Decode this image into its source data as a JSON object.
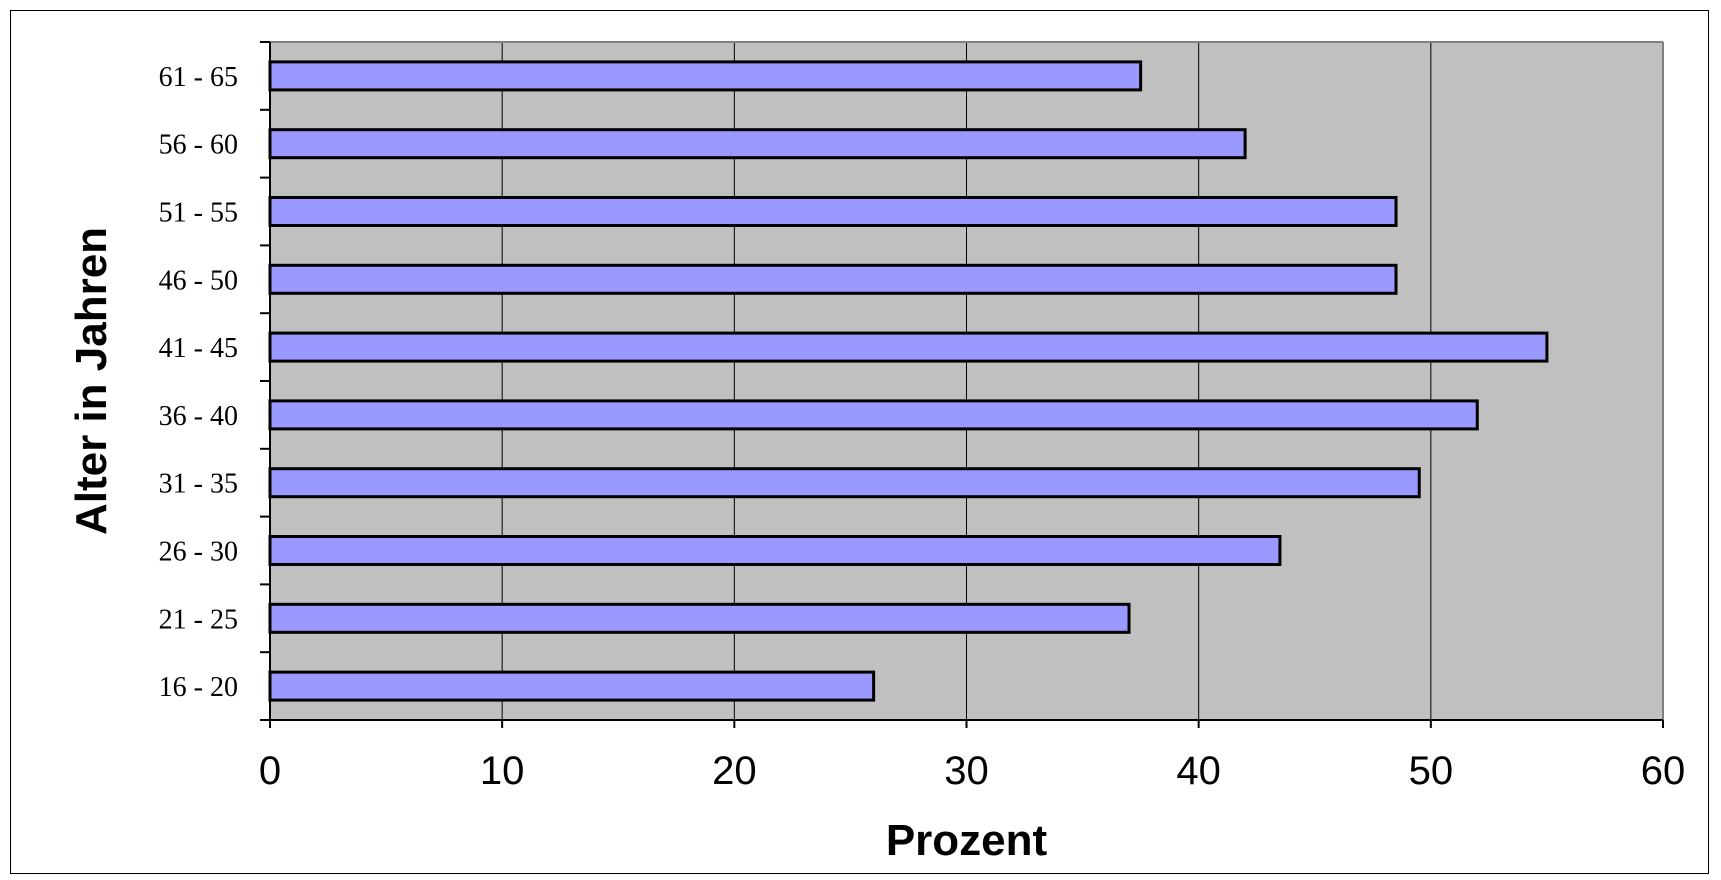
{
  "chart_data": {
    "type": "bar",
    "orientation": "horizontal",
    "categories": [
      "16 - 20",
      "21 - 25",
      "26 - 30",
      "31 - 35",
      "36 - 40",
      "41 - 45",
      "46 - 50",
      "51 - 55",
      "56 - 60",
      "61 - 65"
    ],
    "values": [
      26,
      37,
      43.5,
      49.5,
      52,
      55,
      48.5,
      48.5,
      42,
      37.5
    ],
    "xlabel": "Prozent",
    "ylabel": "Alter in Jahren",
    "xlim": [
      0,
      60
    ],
    "x_ticks": [
      "0",
      "10",
      "20",
      "30",
      "40",
      "50",
      "60"
    ],
    "grid": "vertical",
    "legend": "none",
    "colors": {
      "bar_fill": "#9999ff",
      "bar_stroke": "#000000",
      "plot_background": "#c0c0c0",
      "gridline": "#000000"
    }
  }
}
